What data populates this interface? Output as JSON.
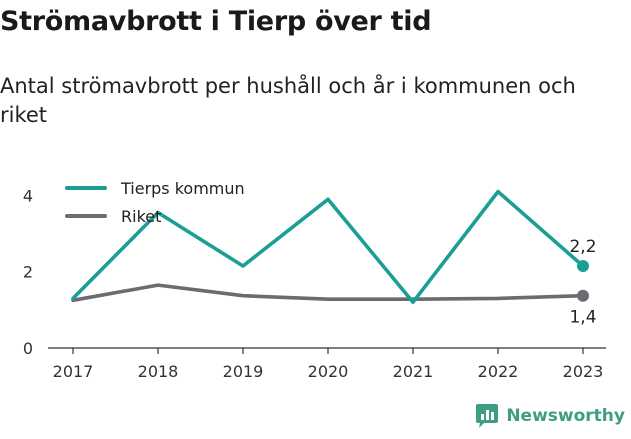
{
  "header": {
    "title": "Strömavbrott i Tierp över tid",
    "subtitle": "Antal strömavbrott per hushåll och år i kommunen och riket"
  },
  "brand": {
    "name": "Newsworthy",
    "icon": "newsworthy-logo-icon",
    "color": "#3f9d86"
  },
  "chart_data": {
    "type": "line",
    "categories": [
      "2017",
      "2018",
      "2019",
      "2020",
      "2021",
      "2022",
      "2023"
    ],
    "series": [
      {
        "name": "Tierps kommun",
        "color": "#1a9e95",
        "values": [
          1.3,
          3.55,
          2.15,
          3.9,
          1.2,
          4.1,
          2.15
        ],
        "end_label": "2,2"
      },
      {
        "name": "Riket",
        "color": "#6b6b73",
        "values": [
          1.25,
          1.65,
          1.37,
          1.28,
          1.28,
          1.3,
          1.37
        ],
        "end_label": "1,4"
      }
    ],
    "ylim": [
      0,
      4.3
    ],
    "yticks": [
      "0",
      "2",
      "4"
    ],
    "ytick_values": [
      0,
      2,
      4
    ],
    "xlabel": "",
    "ylabel": "",
    "grid": false,
    "legend_position": "top-left"
  }
}
